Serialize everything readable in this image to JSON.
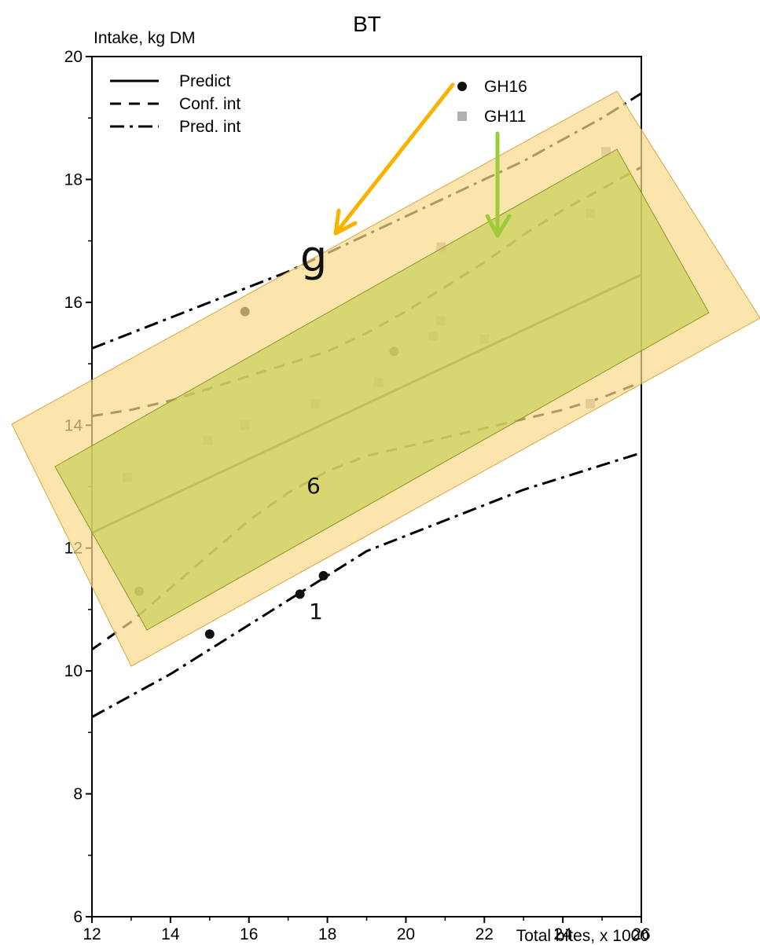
{
  "chart_data": {
    "type": "scatter",
    "title": "BT",
    "ylabel": "Intake, kg DM",
    "xlabel": "Total bites, x 1000",
    "xlim": [
      12,
      26
    ],
    "ylim": [
      6,
      20
    ],
    "x_ticks": [
      12,
      14,
      16,
      18,
      20,
      22,
      24,
      26
    ],
    "y_ticks": [
      6,
      8,
      10,
      12,
      14,
      16,
      18,
      20
    ],
    "grid": false,
    "legend_placement": "top",
    "lines": [
      {
        "name": "Predict",
        "style": "solid",
        "points": [
          [
            12,
            12.25
          ],
          [
            26,
            16.45
          ]
        ]
      },
      {
        "name": "Conf. int",
        "style": "dashed",
        "upper": [
          [
            12,
            14.15
          ],
          [
            13,
            14.25
          ],
          [
            14,
            14.4
          ],
          [
            15,
            14.6
          ],
          [
            16,
            14.8
          ],
          [
            17,
            15.0
          ],
          [
            18,
            15.2
          ],
          [
            19,
            15.5
          ],
          [
            20,
            15.85
          ],
          [
            21,
            16.25
          ],
          [
            22,
            16.65
          ],
          [
            23,
            17.1
          ],
          [
            24,
            17.5
          ],
          [
            25,
            17.85
          ],
          [
            26,
            18.2
          ]
        ],
        "lower": [
          [
            12,
            10.35
          ],
          [
            13,
            10.8
          ],
          [
            14,
            11.35
          ],
          [
            15,
            11.9
          ],
          [
            16,
            12.45
          ],
          [
            17,
            12.9
          ],
          [
            18,
            13.25
          ],
          [
            19,
            13.5
          ],
          [
            20,
            13.65
          ],
          [
            21,
            13.8
          ],
          [
            22,
            13.95
          ],
          [
            23,
            14.1
          ],
          [
            24,
            14.25
          ],
          [
            25,
            14.45
          ],
          [
            26,
            14.7
          ]
        ]
      },
      {
        "name": "Pred. int",
        "style": "dashdot",
        "upper": [
          [
            12,
            15.25
          ],
          [
            13,
            15.5
          ],
          [
            14,
            15.75
          ],
          [
            15,
            16.0
          ],
          [
            16,
            16.25
          ],
          [
            17,
            16.5
          ],
          [
            18,
            16.8
          ],
          [
            19,
            17.1
          ],
          [
            20,
            17.4
          ],
          [
            21,
            17.7
          ],
          [
            22,
            18.0
          ],
          [
            23,
            18.3
          ],
          [
            24,
            18.65
          ],
          [
            25,
            19.0
          ],
          [
            26,
            19.4
          ]
        ],
        "lower": [
          [
            12,
            9.25
          ],
          [
            13,
            9.6
          ],
          [
            14,
            9.95
          ],
          [
            15,
            10.35
          ],
          [
            16,
            10.75
          ],
          [
            17,
            11.15
          ],
          [
            18,
            11.55
          ],
          [
            19,
            11.95
          ],
          [
            20,
            12.2
          ],
          [
            21,
            12.45
          ],
          [
            22,
            12.7
          ],
          [
            23,
            12.95
          ],
          [
            24,
            13.15
          ],
          [
            25,
            13.35
          ],
          [
            26,
            13.55
          ]
        ]
      }
    ],
    "series": [
      {
        "name": "GH16",
        "marker": "circle",
        "color": "#111111",
        "points": [
          [
            13.2,
            11.3
          ],
          [
            15.9,
            15.85
          ],
          [
            15.0,
            10.6
          ],
          [
            17.3,
            11.25
          ],
          [
            17.9,
            11.55
          ],
          [
            19.7,
            15.2
          ]
        ]
      },
      {
        "name": "GH11",
        "marker": "square",
        "color": "#b0b0b0",
        "points": [
          [
            12.9,
            13.15
          ],
          [
            14.95,
            13.75
          ],
          [
            15.9,
            14.0
          ],
          [
            17.7,
            14.35
          ],
          [
            19.3,
            14.7
          ],
          [
            20.7,
            15.45
          ],
          [
            20.9,
            16.9
          ],
          [
            20.9,
            15.7
          ],
          [
            22.0,
            15.4
          ],
          [
            24.7,
            14.35
          ],
          [
            24.7,
            17.45
          ],
          [
            25.1,
            18.45
          ]
        ]
      }
    ],
    "legend": [
      "Predict",
      "Conf. int",
      "Pred. int",
      "GH16",
      "GH11"
    ]
  },
  "overlay": {
    "outer_band_color": "#fbd98a",
    "inner_band_color": "#c9cf5a",
    "orange_arrow_color": "#f6b400",
    "green_arrow_color": "#9ecb3a"
  },
  "edge_fragments": [
    "g",
    "6",
    "1"
  ]
}
